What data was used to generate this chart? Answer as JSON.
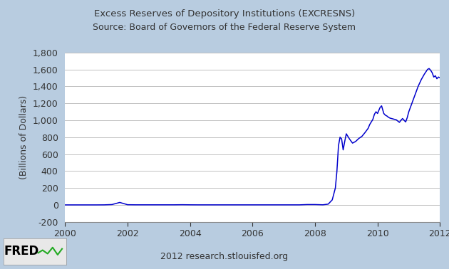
{
  "title_line1": "Excess Reserves of Depository Institutions (EXCRESNS)",
  "title_line2": "Source: Board of Governors of the Federal Reserve System",
  "ylabel": "(Billions of Dollars)",
  "footer": "2012 research.stlouisfed.org",
  "xlim": [
    2000,
    2012
  ],
  "ylim": [
    -200,
    1800
  ],
  "yticks": [
    -200,
    0,
    200,
    400,
    600,
    800,
    1000,
    1200,
    1400,
    1600,
    1800
  ],
  "xticks": [
    2000,
    2002,
    2004,
    2006,
    2008,
    2010,
    2012
  ],
  "line_color": "#0000CC",
  "bg_color": "#B8CCE0",
  "plot_bg_color": "#FFFFFF",
  "grid_color": "#C0C0C0",
  "data": [
    [
      2000.0,
      1.0
    ],
    [
      2000.25,
      1.0
    ],
    [
      2000.5,
      1.0
    ],
    [
      2000.75,
      1.0
    ],
    [
      2001.0,
      1.0
    ],
    [
      2001.25,
      1.5
    ],
    [
      2001.5,
      5.0
    ],
    [
      2001.75,
      30.0
    ],
    [
      2002.0,
      3.0
    ],
    [
      2002.25,
      2.0
    ],
    [
      2002.5,
      2.0
    ],
    [
      2002.75,
      2.0
    ],
    [
      2003.0,
      2.0
    ],
    [
      2003.25,
      2.0
    ],
    [
      2003.5,
      2.0
    ],
    [
      2003.75,
      3.0
    ],
    [
      2004.0,
      2.0
    ],
    [
      2004.25,
      1.5
    ],
    [
      2004.5,
      1.5
    ],
    [
      2004.75,
      1.5
    ],
    [
      2005.0,
      1.5
    ],
    [
      2005.25,
      1.5
    ],
    [
      2005.5,
      1.5
    ],
    [
      2005.75,
      1.5
    ],
    [
      2006.0,
      1.5
    ],
    [
      2006.25,
      1.5
    ],
    [
      2006.5,
      1.5
    ],
    [
      2006.75,
      1.5
    ],
    [
      2007.0,
      1.5
    ],
    [
      2007.25,
      1.5
    ],
    [
      2007.5,
      1.5
    ],
    [
      2007.75,
      5.0
    ],
    [
      2008.0,
      5.0
    ],
    [
      2008.25,
      2.0
    ],
    [
      2008.42,
      10.0
    ],
    [
      2008.55,
      60.0
    ],
    [
      2008.65,
      200.0
    ],
    [
      2008.7,
      400.0
    ],
    [
      2008.75,
      700.0
    ],
    [
      2008.8,
      800.0
    ],
    [
      2008.85,
      780.0
    ],
    [
      2008.9,
      650.0
    ],
    [
      2008.95,
      750.0
    ],
    [
      2009.0,
      840.0
    ],
    [
      2009.1,
      780.0
    ],
    [
      2009.2,
      730.0
    ],
    [
      2009.3,
      750.0
    ],
    [
      2009.4,
      785.0
    ],
    [
      2009.5,
      810.0
    ],
    [
      2009.6,
      855.0
    ],
    [
      2009.7,
      905.0
    ],
    [
      2009.75,
      950.0
    ],
    [
      2009.8,
      980.0
    ],
    [
      2009.85,
      1010.0
    ],
    [
      2009.9,
      1070.0
    ],
    [
      2009.95,
      1100.0
    ],
    [
      2010.0,
      1080.0
    ],
    [
      2010.08,
      1150.0
    ],
    [
      2010.13,
      1170.0
    ],
    [
      2010.2,
      1080.0
    ],
    [
      2010.25,
      1060.0
    ],
    [
      2010.3,
      1050.0
    ],
    [
      2010.35,
      1035.0
    ],
    [
      2010.4,
      1025.0
    ],
    [
      2010.5,
      1015.0
    ],
    [
      2010.6,
      1005.0
    ],
    [
      2010.7,
      975.0
    ],
    [
      2010.75,
      1000.0
    ],
    [
      2010.8,
      1020.0
    ],
    [
      2010.9,
      980.0
    ],
    [
      2010.95,
      1030.0
    ],
    [
      2011.0,
      1100.0
    ],
    [
      2011.1,
      1200.0
    ],
    [
      2011.2,
      1300.0
    ],
    [
      2011.3,
      1400.0
    ],
    [
      2011.4,
      1480.0
    ],
    [
      2011.5,
      1545.0
    ],
    [
      2011.6,
      1600.0
    ],
    [
      2011.65,
      1610.0
    ],
    [
      2011.7,
      1590.0
    ],
    [
      2011.75,
      1560.0
    ],
    [
      2011.8,
      1510.0
    ],
    [
      2011.85,
      1525.0
    ],
    [
      2011.9,
      1490.0
    ],
    [
      2011.95,
      1510.0
    ],
    [
      2012.0,
      1500.0
    ]
  ],
  "fred_box_color": "#E8E8E8",
  "fred_text_color": "#000000",
  "fred_chart_color": "#22AA22"
}
